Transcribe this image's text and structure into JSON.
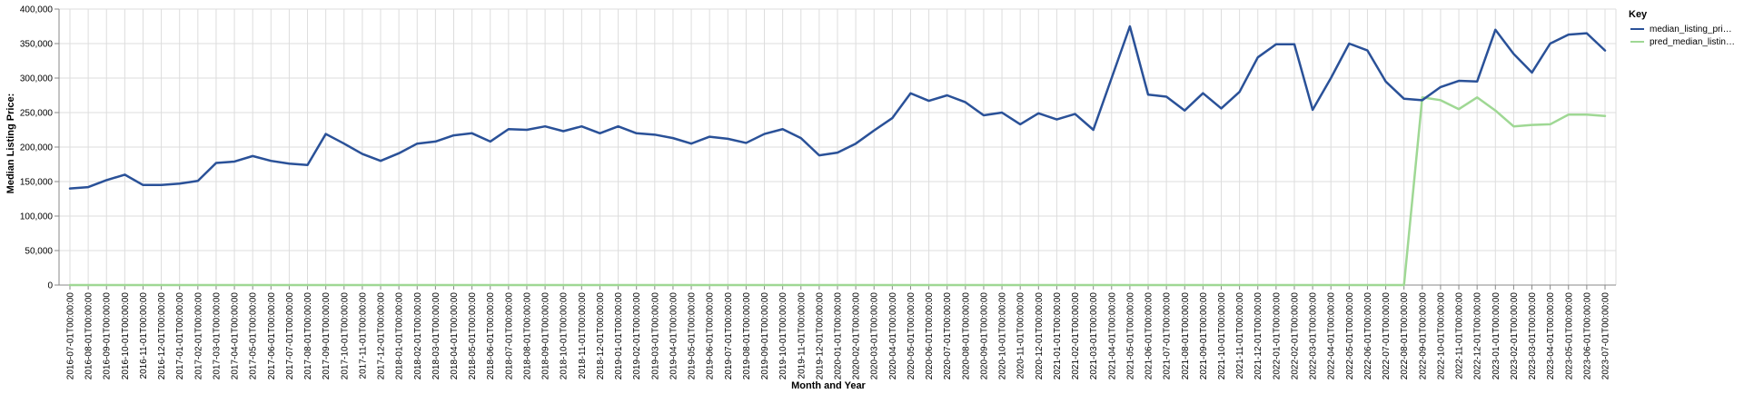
{
  "chart_data": {
    "type": "line",
    "xlabel": "Month and Year",
    "ylabel": "Median Listing Price:",
    "ylim": [
      0,
      400000
    ],
    "yticks": [
      "0",
      "50,000",
      "100,000",
      "150,000",
      "200,000",
      "250,000",
      "300,000",
      "350,000",
      "400,000"
    ],
    "grid": true,
    "legend": {
      "title": "Key",
      "position": "right"
    },
    "categories": [
      "2016-07-01T00:00:00",
      "2016-08-01T00:00:00",
      "2016-09-01T00:00:00",
      "2016-10-01T00:00:00",
      "2016-11-01T00:00:00",
      "2016-12-01T00:00:00",
      "2017-01-01T00:00:00",
      "2017-02-01T00:00:00",
      "2017-03-01T00:00:00",
      "2017-04-01T00:00:00",
      "2017-05-01T00:00:00",
      "2017-06-01T00:00:00",
      "2017-07-01T00:00:00",
      "2017-08-01T00:00:00",
      "2017-09-01T00:00:00",
      "2017-10-01T00:00:00",
      "2017-11-01T00:00:00",
      "2017-12-01T00:00:00",
      "2018-01-01T00:00:00",
      "2018-02-01T00:00:00",
      "2018-03-01T00:00:00",
      "2018-04-01T00:00:00",
      "2018-05-01T00:00:00",
      "2018-06-01T00:00:00",
      "2018-07-01T00:00:00",
      "2018-08-01T00:00:00",
      "2018-09-01T00:00:00",
      "2018-10-01T00:00:00",
      "2018-11-01T00:00:00",
      "2018-12-01T00:00:00",
      "2019-01-01T00:00:00",
      "2019-02-01T00:00:00",
      "2019-03-01T00:00:00",
      "2019-04-01T00:00:00",
      "2019-05-01T00:00:00",
      "2019-06-01T00:00:00",
      "2019-07-01T00:00:00",
      "2019-08-01T00:00:00",
      "2019-09-01T00:00:00",
      "2019-10-01T00:00:00",
      "2019-11-01T00:00:00",
      "2019-12-01T00:00:00",
      "2020-01-01T00:00:00",
      "2020-02-01T00:00:00",
      "2020-03-01T00:00:00",
      "2020-04-01T00:00:00",
      "2020-05-01T00:00:00",
      "2020-06-01T00:00:00",
      "2020-07-01T00:00:00",
      "2020-08-01T00:00:00",
      "2020-09-01T00:00:00",
      "2020-10-01T00:00:00",
      "2020-11-01T00:00:00",
      "2020-12-01T00:00:00",
      "2021-01-01T00:00:00",
      "2021-02-01T00:00:00",
      "2021-03-01T00:00:00",
      "2021-04-01T00:00:00",
      "2021-05-01T00:00:00",
      "2021-06-01T00:00:00",
      "2021-07-01T00:00:00",
      "2021-08-01T00:00:00",
      "2021-09-01T00:00:00",
      "2021-10-01T00:00:00",
      "2021-11-01T00:00:00",
      "2021-12-01T00:00:00",
      "2022-01-01T00:00:00",
      "2022-02-01T00:00:00",
      "2022-03-01T00:00:00",
      "2022-04-01T00:00:00",
      "2022-05-01T00:00:00",
      "2022-06-01T00:00:00",
      "2022-07-01T00:00:00",
      "2022-08-01T00:00:00",
      "2022-09-01T00:00:00",
      "2022-10-01T00:00:00",
      "2022-11-01T00:00:00",
      "2022-12-01T00:00:00",
      "2023-01-01T00:00:00",
      "2023-02-01T00:00:00",
      "2023-03-01T00:00:00",
      "2023-04-01T00:00:00",
      "2023-05-01T00:00:00",
      "2023-06-01T00:00:00",
      "2023-07-01T00:00:00"
    ],
    "series": [
      {
        "name": "median_listing_pri…",
        "color": "#2a5198",
        "values": [
          140000,
          142000,
          152000,
          160000,
          145000,
          145000,
          147000,
          151000,
          177000,
          179000,
          187000,
          180000,
          176000,
          174000,
          219000,
          205000,
          190000,
          180000,
          191000,
          205000,
          208000,
          217000,
          220000,
          208000,
          226000,
          225000,
          230000,
          223000,
          230000,
          220000,
          230000,
          220000,
          218000,
          213000,
          205000,
          215000,
          212000,
          206000,
          219000,
          226000,
          213000,
          188000,
          192000,
          205000,
          224000,
          242000,
          278000,
          267000,
          275000,
          265000,
          246000,
          250000,
          233000,
          249000,
          240000,
          248000,
          225000,
          300000,
          375000,
          276000,
          273000,
          253000,
          278000,
          256000,
          280000,
          330000,
          349000,
          349000,
          254000,
          300000,
          350000,
          340000,
          295000,
          270000,
          268000,
          287000,
          296000,
          295000,
          370000,
          335000,
          308000,
          350000,
          363000,
          365000,
          340000
        ]
      },
      {
        "name": "pred_median_listin…",
        "color": "#9fd894",
        "values": [
          0,
          0,
          0,
          0,
          0,
          0,
          0,
          0,
          0,
          0,
          0,
          0,
          0,
          0,
          0,
          0,
          0,
          0,
          0,
          0,
          0,
          0,
          0,
          0,
          0,
          0,
          0,
          0,
          0,
          0,
          0,
          0,
          0,
          0,
          0,
          0,
          0,
          0,
          0,
          0,
          0,
          0,
          0,
          0,
          0,
          0,
          0,
          0,
          0,
          0,
          0,
          0,
          0,
          0,
          0,
          0,
          0,
          0,
          0,
          0,
          0,
          0,
          0,
          0,
          0,
          0,
          0,
          0,
          0,
          0,
          0,
          0,
          0,
          0,
          272000,
          268000,
          255000,
          272000,
          253000,
          230000,
          232000,
          233000,
          247000,
          247000,
          245000
        ]
      }
    ]
  }
}
